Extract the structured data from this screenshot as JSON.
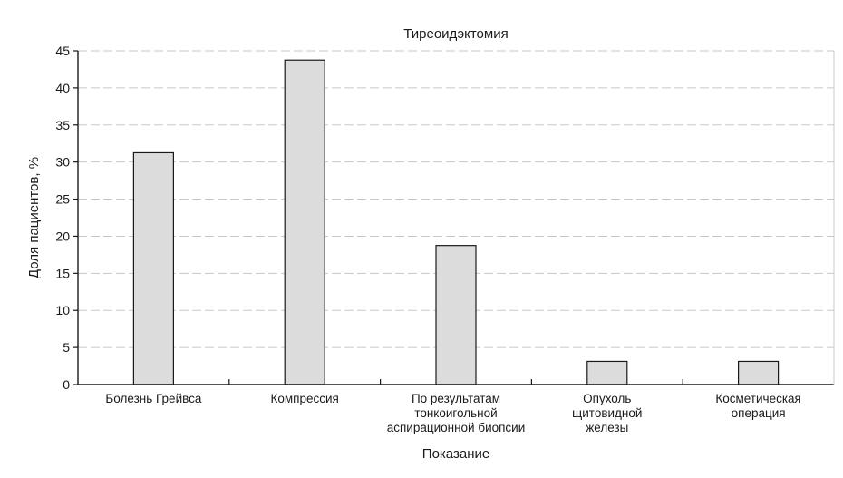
{
  "chart_data": {
    "type": "bar",
    "title": "Тиреоидэктомия",
    "xlabel": "Показание",
    "ylabel": "Доля пациентов, %",
    "categories": [
      [
        "Болезнь Грейвса"
      ],
      [
        "Компрессия"
      ],
      [
        "По результатам",
        "тонкоигольной",
        "аспирационной биопсии"
      ],
      [
        "Опухоль",
        "щитовидной",
        "железы"
      ],
      [
        "Косметическая",
        "операция"
      ]
    ],
    "values": [
      31.25,
      43.75,
      18.75,
      3.125,
      3.125
    ],
    "ylim": [
      0,
      45
    ],
    "yticks": [
      0,
      5,
      10,
      15,
      20,
      25,
      30,
      35,
      40,
      45
    ],
    "grid": true,
    "bar_color": "#dcdcdc",
    "edge_color": "#1a1a1a",
    "grid_color": "#c8c8c8"
  }
}
